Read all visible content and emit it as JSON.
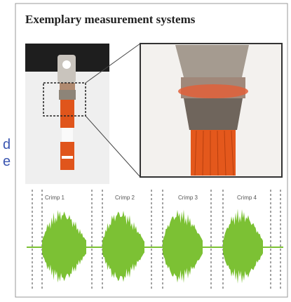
{
  "side_text": [
    "d",
    "e"
  ],
  "panel": {
    "title": "Exemplary measurement systems",
    "waveform_labels": [
      "Crimp 1",
      "Crimp 2",
      "Crimp 3",
      "Crimp 4"
    ]
  }
}
